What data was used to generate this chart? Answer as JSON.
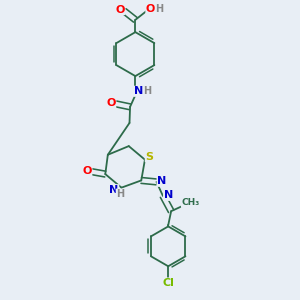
{
  "bg_color": "#e8eef5",
  "bond_color": "#2d6b4a",
  "atom_colors": {
    "O": "#ff0000",
    "N": "#0000cc",
    "S": "#b5b500",
    "Cl": "#77bb00",
    "C": "#2d6b4a",
    "H": "#888888"
  }
}
